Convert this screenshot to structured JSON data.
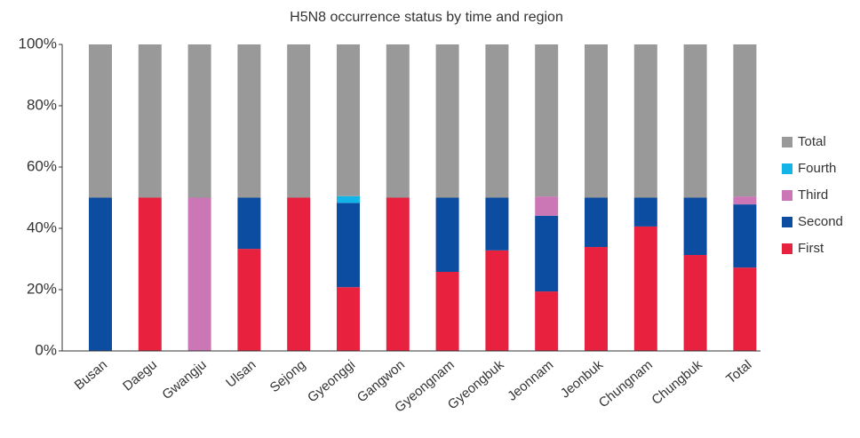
{
  "chart_data": {
    "type": "stacked_bar",
    "title": "H5N8 occurrence status by time and region",
    "categories": [
      "Busan",
      "Daegu",
      "Gwangju",
      "Ulsan",
      "Sejong",
      "Gyeonggi",
      "Gangwon",
      "Gyeongnam",
      "Gyeongbuk",
      "Jeonnam",
      "Jeonbuk",
      "Chungnam",
      "Chungbuk",
      "Total"
    ],
    "series": [
      {
        "name": "First",
        "color": "#e8213f",
        "values": [
          0,
          50,
          0,
          33.3,
          50,
          20.8,
          50,
          25.8,
          32.8,
          19.4,
          33.9,
          40.6,
          31.3,
          27.2
        ]
      },
      {
        "name": "Second",
        "color": "#0d4da1",
        "values": [
          50,
          0,
          0,
          16.7,
          0,
          27.5,
          0,
          24.2,
          17.2,
          24.7,
          16.1,
          9.4,
          18.7,
          20.6
        ]
      },
      {
        "name": "Third",
        "color": "#cc77b5",
        "values": [
          0,
          0,
          50,
          0,
          0,
          0,
          0,
          0,
          0,
          6.3,
          0,
          0,
          0,
          2.6
        ]
      },
      {
        "name": "Fourth",
        "color": "#13b4e8",
        "values": [
          0,
          0,
          0,
          0,
          0,
          2.2,
          0,
          0,
          0,
          0,
          0,
          0,
          0,
          0
        ]
      },
      {
        "name": "Total",
        "color": "#999999",
        "values": [
          50,
          50,
          50,
          50,
          50,
          49.5,
          50,
          50,
          50,
          49.6,
          50,
          50,
          50,
          49.6
        ]
      }
    ],
    "ylim": [
      0,
      100
    ],
    "yticks": [
      {
        "value": 0,
        "label": "0%"
      },
      {
        "value": 20,
        "label": "20%"
      },
      {
        "value": 40,
        "label": "40%"
      },
      {
        "value": 60,
        "label": "60%"
      },
      {
        "value": 80,
        "label": "80%"
      },
      {
        "value": 100,
        "label": "100%"
      }
    ],
    "legend": "right"
  }
}
